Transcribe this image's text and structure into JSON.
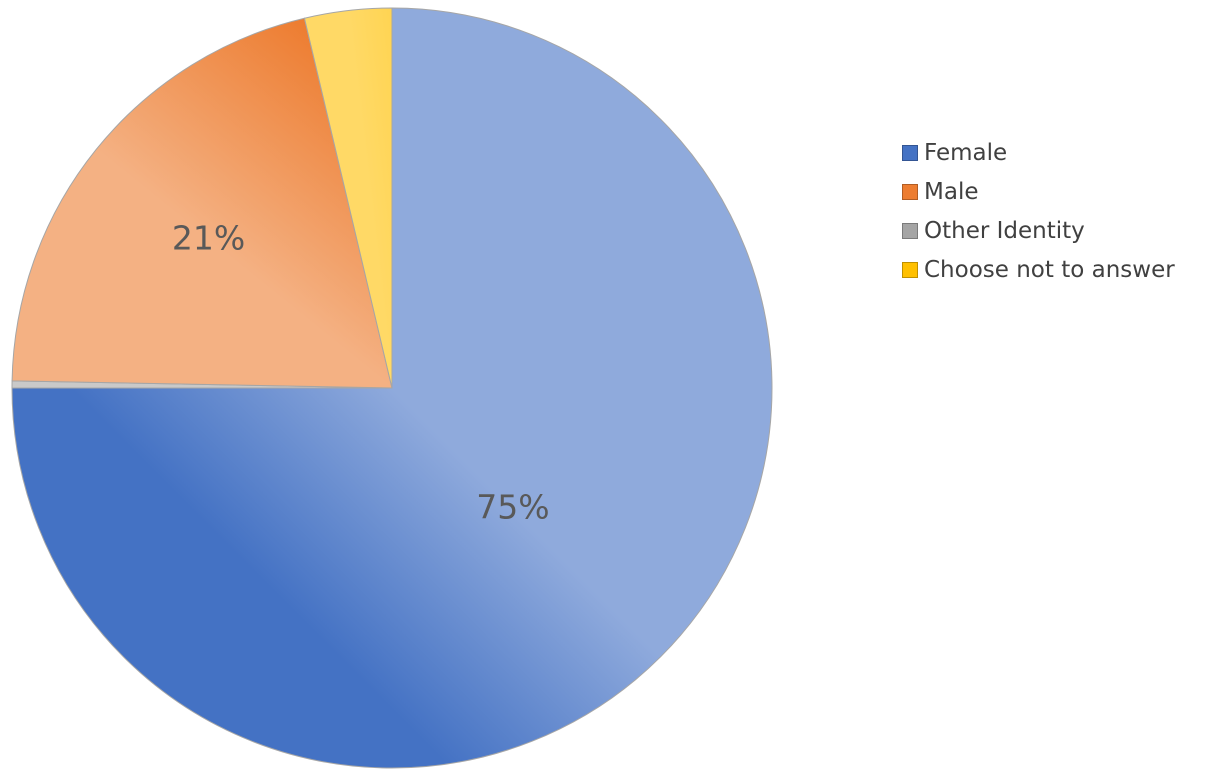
{
  "chart_data": {
    "type": "pie",
    "title": "",
    "start_angle_deg": 0,
    "direction": "clockwise",
    "legend_position": "right",
    "slices": [
      {
        "label": "Female",
        "value": 75,
        "data_label": "75%",
        "color": "#4472C4",
        "color_light": "#8FAADC"
      },
      {
        "label": "Other Identity",
        "value": 0.3,
        "data_label": "",
        "color": "#A5A5A5",
        "color_light": "#C9C9C9"
      },
      {
        "label": "Male",
        "value": 21,
        "data_label": "21%",
        "color": "#ED7D31",
        "color_light": "#F4B183"
      },
      {
        "label": "Choose not to answer",
        "value": 3.7,
        "data_label": "",
        "color": "#FFC000",
        "color_light": "#FFD966"
      }
    ]
  },
  "legend": {
    "items": [
      {
        "label": "Female",
        "color": "#4472C4"
      },
      {
        "label": "Male",
        "color": "#ED7D31"
      },
      {
        "label": "Other Identity",
        "color": "#A5A5A5"
      },
      {
        "label": "Choose not to answer",
        "color": "#FFC000"
      }
    ]
  }
}
